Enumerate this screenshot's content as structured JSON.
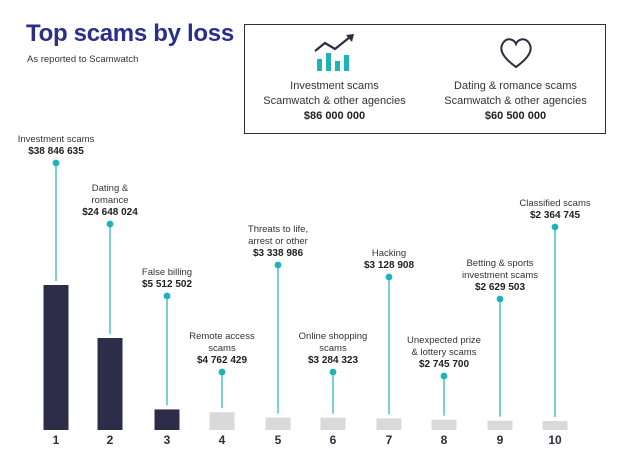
{
  "header": {
    "title": "Top scams by loss",
    "subtitle": "As reported to Scamwatch"
  },
  "summary": [
    {
      "icon": "investment-chart-icon",
      "line1": "Investment scams",
      "line2": "Scamwatch & other agencies",
      "amount": "$86 000 000"
    },
    {
      "icon": "heart-icon",
      "line1": "Dating & romance scams",
      "line2": "Scamwatch & other agencies",
      "amount": "$60 500 000"
    }
  ],
  "colors": {
    "title": "#2b2f8c",
    "bar_top": "#2d2d4a",
    "bar_other": "#d9d9dc",
    "accent": "#1eb3b8",
    "text": "#333333"
  },
  "chart_data": {
    "type": "bar",
    "categories": [
      "1",
      "2",
      "3",
      "4",
      "5",
      "6",
      "7",
      "8",
      "9",
      "10"
    ],
    "values": [
      38846635,
      24648024,
      5512502,
      4762429,
      3338986,
      3284323,
      3128908,
      2745700,
      2629503,
      2364745
    ],
    "annotations": [
      {
        "label": [
          "Investment scams"
        ],
        "value": "$38 846 635"
      },
      {
        "label": [
          "Dating &",
          "romance"
        ],
        "value": "$24 648 024"
      },
      {
        "label": [
          "False billing"
        ],
        "value": "$5 512 502"
      },
      {
        "label": [
          "Remote access",
          "scams"
        ],
        "value": "$4 762 429"
      },
      {
        "label": [
          "Threats to life,",
          "arrest or other"
        ],
        "value": "$3 338 986"
      },
      {
        "label": [
          "Online shopping",
          "scams"
        ],
        "value": "$3 284 323"
      },
      {
        "label": [
          "Hacking"
        ],
        "value": "$3 128 908"
      },
      {
        "label": [
          "Unexpected prize",
          "& lottery scams"
        ],
        "value": "$2 745 700"
      },
      {
        "label": [
          "Betting & sports",
          "investment scams"
        ],
        "value": "$2 629 503"
      },
      {
        "label": [
          "Classified scams"
        ],
        "value": "$2 364 745"
      }
    ],
    "title": "",
    "xlabel": "",
    "ylabel": "",
    "ylim": [
      0,
      38846635
    ],
    "grid": false,
    "legend": "none"
  }
}
